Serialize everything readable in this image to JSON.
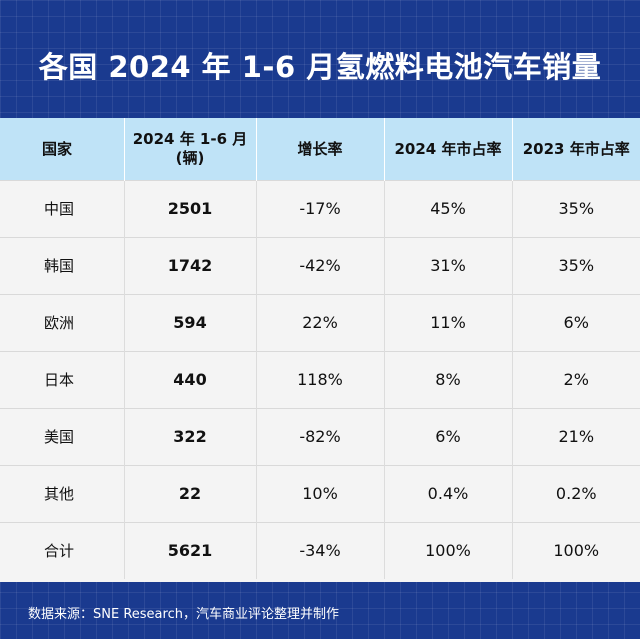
{
  "title": "各国 2024 年 1-6 月氢燃料电池汽车销量",
  "table": {
    "headers": [
      "国家",
      "2024 年 1-6 月\n(辆)",
      "增长率",
      "2024 年市占率",
      "2023 年市占率"
    ],
    "rows": [
      [
        "中国",
        "2501",
        "-17%",
        "45%",
        "35%"
      ],
      [
        "韩国",
        "1742",
        "-42%",
        "31%",
        "35%"
      ],
      [
        "欧洲",
        "594",
        "22%",
        "11%",
        "6%"
      ],
      [
        "日本",
        "440",
        "118%",
        "8%",
        "2%"
      ],
      [
        "美国",
        "322",
        "-82%",
        "6%",
        "21%"
      ],
      [
        "其他",
        "22",
        "10%",
        "0.4%",
        "0.2%"
      ],
      [
        "合计",
        "5621",
        "-34%",
        "100%",
        "100%"
      ]
    ]
  },
  "footer": "数据来源：SNE Research，汽车商业评论整理并制作",
  "colors": {
    "background": "#1a3a8f",
    "header_row": "#bfe3f7",
    "table_body": "#f4f4f4"
  }
}
